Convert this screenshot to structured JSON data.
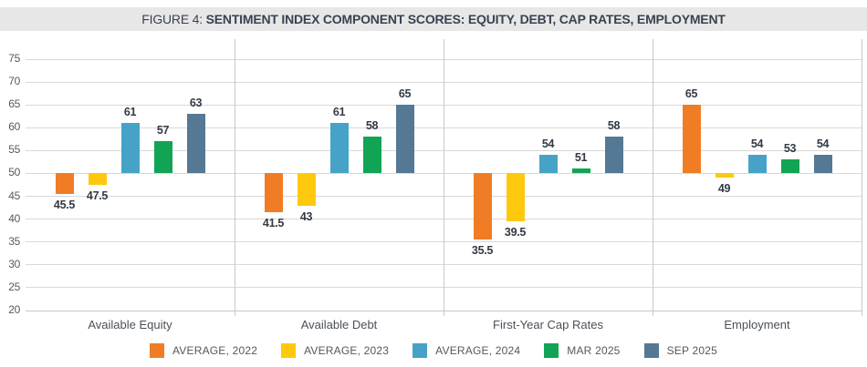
{
  "title": {
    "prefix": "FIGURE 4: ",
    "main": "SENTIMENT INDEX COMPONENT SCORES: EQUITY, DEBT, CAP RATES, EMPLOYMENT"
  },
  "palette": {
    "title_bar_bg": "#e7e7e8",
    "title_text": "#3a4250",
    "grid": "#d8d8d8",
    "divider": "#c6c9cc",
    "tick_text": "#55595e",
    "value_text": "#333a45",
    "category_text": "#4a5058",
    "legend_text": "#54585c"
  },
  "chart_data": {
    "type": "bar",
    "title": "FIGURE 4: SENTIMENT INDEX COMPONENT SCORES: EQUITY, DEBT, CAP RATES, EMPLOYMENT",
    "xlabel": "",
    "ylabel": "",
    "ylim": [
      20,
      75
    ],
    "yticks": [
      75,
      70,
      65,
      60,
      55,
      50,
      45,
      40,
      35,
      30,
      25,
      20
    ],
    "baseline": 50,
    "grid": true,
    "legend_position": "bottom",
    "categories": [
      "Available Equity",
      "Available Debt",
      "First-Year Cap Rates",
      "Employment"
    ],
    "series": [
      {
        "name": "AVERAGE, 2022",
        "color": "#F07D26",
        "values": [
          45.5,
          41.5,
          35.5,
          65
        ]
      },
      {
        "name": "AVERAGE, 2023",
        "color": "#FEC80F",
        "values": [
          47.5,
          43,
          39.5,
          49
        ]
      },
      {
        "name": "AVERAGE, 2024",
        "color": "#46A2C6",
        "values": [
          61,
          61,
          54,
          54
        ]
      },
      {
        "name": "MAR 2025",
        "color": "#12A455",
        "values": [
          57,
          58,
          51,
          53
        ]
      },
      {
        "name": "SEP 2025",
        "color": "#557894",
        "values": [
          63,
          65,
          58,
          54
        ]
      }
    ]
  }
}
